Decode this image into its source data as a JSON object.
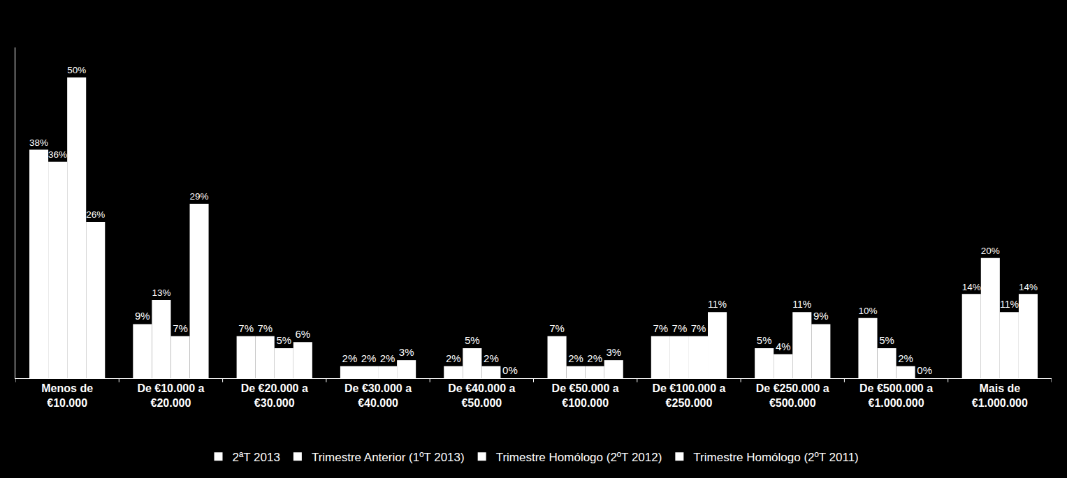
{
  "chart_data": {
    "type": "bar",
    "categories": [
      "Menos de\n€10.000",
      "De €10.000 a\n€20.000",
      "De €20.000 a\n€30.000",
      "De €30.000 a\n€40.000",
      "De €40.000 a\n€50.000",
      "De €50.000 a\n€100.000",
      "De €100.000 a\n€250.000",
      "De €250.000 a\n€500.000",
      "De €500.000 a\n€1.000.000",
      "Mais de\n€1.000.000"
    ],
    "series": [
      {
        "name": "2ªT 2013",
        "color": "#ffffff",
        "values": [
          38,
          9,
          7,
          2,
          2,
          7,
          7,
          5,
          10,
          14
        ],
        "value_labels": [
          "38%",
          "9%",
          "7%",
          "2%",
          "2%",
          "7%",
          "7%",
          "5%",
          "10%",
          "14%"
        ]
      },
      {
        "name": "Trimestre Anterior (1ºT 2013)",
        "color": "#ffffff",
        "values": [
          36,
          13,
          7,
          2,
          5,
          2,
          7,
          4,
          5,
          20
        ],
        "value_labels": [
          "36%",
          "13%",
          "7%",
          "2%",
          "5%",
          "2%",
          "7%",
          "4%",
          "5%",
          "20%"
        ]
      },
      {
        "name": "Trimestre Homólogo (2ºT 2012)",
        "color": "#ffffff",
        "values": [
          50,
          7,
          5,
          2,
          2,
          2,
          7,
          11,
          2,
          11
        ],
        "value_labels": [
          "50%",
          "7%",
          "5%",
          "2%",
          "2%",
          "2%",
          "7%",
          "11%",
          "2%",
          "11%"
        ]
      },
      {
        "name": "Trimestre Homólogo (2ºT 2011)",
        "color": "#ffffff",
        "values": [
          26,
          29,
          6,
          3,
          0,
          3,
          11,
          9,
          0,
          14
        ],
        "value_labels": [
          "26%",
          "29%",
          "6%",
          "3%",
          "0%",
          "3%",
          "11%",
          "9%",
          "0%",
          "14%"
        ]
      }
    ],
    "ylim": [
      0,
      55
    ],
    "yticks": [],
    "tick_labels": "x",
    "grid": false,
    "legend": "bottom",
    "data_labels": true
  }
}
